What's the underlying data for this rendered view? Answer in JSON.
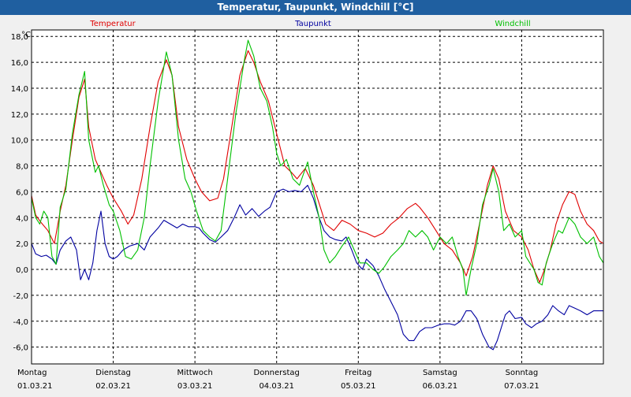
{
  "window": {
    "title": "Temperatur, Taupunkt, Windchill [°C]"
  },
  "chart_data": {
    "type": "line",
    "title": "Temperatur, Taupunkt, Windchill [°C]",
    "ylabel": "°C",
    "ylim": [
      -7.3,
      18.5
    ],
    "xlim": [
      0,
      7
    ],
    "grid": true,
    "y_ticks": [
      "18,0",
      "16,0",
      "14,0",
      "12,0",
      "10,0",
      "8,0",
      "6,0",
      "4,0",
      "2,0",
      "0,0",
      "-2,0",
      "-4,0",
      "-6,0"
    ],
    "y_tick_values": [
      18,
      16,
      14,
      12,
      10,
      8,
      6,
      4,
      2,
      0,
      -2,
      -4,
      -6
    ],
    "x_ticks": [
      {
        "day": "Montag",
        "date": "01.03.21"
      },
      {
        "day": "Dienstag",
        "date": "02.03.21"
      },
      {
        "day": "Mittwoch",
        "date": "03.03.21"
      },
      {
        "day": "Donnerstag",
        "date": "04.03.21"
      },
      {
        "day": "Freitag",
        "date": "05.03.21"
      },
      {
        "day": "Samstag",
        "date": "06.03.21"
      },
      {
        "day": "Sonntag",
        "date": "07.03.21"
      }
    ],
    "series": [
      {
        "name": "Temperatur",
        "color": "#e00000",
        "points": [
          [
            0,
            5.7
          ],
          [
            0.05,
            4.2
          ],
          [
            0.12,
            3.6
          ],
          [
            0.2,
            3
          ],
          [
            0.28,
            2
          ],
          [
            0.35,
            4.5
          ],
          [
            0.42,
            6.5
          ],
          [
            0.5,
            10
          ],
          [
            0.58,
            13.3
          ],
          [
            0.65,
            14.7
          ],
          [
            0.7,
            11
          ],
          [
            0.78,
            8.5
          ],
          [
            0.85,
            7.5
          ],
          [
            0.92,
            6.5
          ],
          [
            1,
            5.5
          ],
          [
            1.1,
            4.5
          ],
          [
            1.18,
            3.5
          ],
          [
            1.25,
            4.2
          ],
          [
            1.35,
            7
          ],
          [
            1.45,
            11
          ],
          [
            1.55,
            14.5
          ],
          [
            1.65,
            16.2
          ],
          [
            1.72,
            15
          ],
          [
            1.8,
            11
          ],
          [
            1.9,
            8.5
          ],
          [
            2,
            7
          ],
          [
            2.08,
            6
          ],
          [
            2.18,
            5.3
          ],
          [
            2.28,
            5.5
          ],
          [
            2.35,
            7
          ],
          [
            2.45,
            11
          ],
          [
            2.55,
            15
          ],
          [
            2.65,
            16.9
          ],
          [
            2.72,
            16
          ],
          [
            2.8,
            14.5
          ],
          [
            2.9,
            13
          ],
          [
            3,
            10.5
          ],
          [
            3.1,
            8
          ],
          [
            3.18,
            7.5
          ],
          [
            3.25,
            7
          ],
          [
            3.35,
            7.8
          ],
          [
            3.45,
            6.5
          ],
          [
            3.55,
            4.5
          ],
          [
            3.6,
            3.5
          ],
          [
            3.7,
            3
          ],
          [
            3.8,
            3.8
          ],
          [
            3.9,
            3.5
          ],
          [
            4,
            3
          ],
          [
            4.1,
            2.8
          ],
          [
            4.2,
            2.5
          ],
          [
            4.3,
            2.8
          ],
          [
            4.4,
            3.5
          ],
          [
            4.5,
            4
          ],
          [
            4.6,
            4.7
          ],
          [
            4.7,
            5.1
          ],
          [
            4.75,
            4.8
          ],
          [
            4.85,
            4
          ],
          [
            4.95,
            3
          ],
          [
            5.05,
            2
          ],
          [
            5.15,
            1.5
          ],
          [
            5.25,
            0.5
          ],
          [
            5.32,
            -0.5
          ],
          [
            5.4,
            1
          ],
          [
            5.5,
            4
          ],
          [
            5.58,
            6.5
          ],
          [
            5.65,
            8
          ],
          [
            5.72,
            7
          ],
          [
            5.8,
            4.5
          ],
          [
            5.9,
            3
          ],
          [
            6,
            2.5
          ],
          [
            6.08,
            1.5
          ],
          [
            6.15,
            0
          ],
          [
            6.22,
            -1
          ],
          [
            6.28,
            0
          ],
          [
            6.35,
            1.5
          ],
          [
            6.42,
            3.5
          ],
          [
            6.5,
            5
          ],
          [
            6.58,
            6
          ],
          [
            6.65,
            5.8
          ],
          [
            6.72,
            4.5
          ],
          [
            6.8,
            3.5
          ],
          [
            6.88,
            3
          ],
          [
            6.95,
            2.2
          ],
          [
            7,
            2
          ]
        ]
      },
      {
        "name": "Taupunkt",
        "color": "#0000a0",
        "points": [
          [
            0,
            2
          ],
          [
            0.05,
            1.2
          ],
          [
            0.12,
            1
          ],
          [
            0.18,
            1.1
          ],
          [
            0.25,
            0.8
          ],
          [
            0.3,
            0.4
          ],
          [
            0.35,
            1.5
          ],
          [
            0.42,
            2.2
          ],
          [
            0.48,
            2.5
          ],
          [
            0.55,
            1.5
          ],
          [
            0.6,
            -0.8
          ],
          [
            0.65,
            0
          ],
          [
            0.7,
            -0.8
          ],
          [
            0.75,
            0.5
          ],
          [
            0.8,
            3
          ],
          [
            0.85,
            4.5
          ],
          [
            0.9,
            2
          ],
          [
            0.95,
            1
          ],
          [
            1,
            0.8
          ],
          [
            1.05,
            1
          ],
          [
            1.12,
            1.5
          ],
          [
            1.2,
            1.8
          ],
          [
            1.3,
            2
          ],
          [
            1.38,
            1.5
          ],
          [
            1.45,
            2.5
          ],
          [
            1.55,
            3.2
          ],
          [
            1.62,
            3.8
          ],
          [
            1.7,
            3.5
          ],
          [
            1.78,
            3.2
          ],
          [
            1.85,
            3.5
          ],
          [
            1.92,
            3.3
          ],
          [
            2,
            3.3
          ],
          [
            2.05,
            3.2
          ],
          [
            2.1,
            2.8
          ],
          [
            2.18,
            2.3
          ],
          [
            2.25,
            2.1
          ],
          [
            2.32,
            2.5
          ],
          [
            2.4,
            3
          ],
          [
            2.48,
            4
          ],
          [
            2.55,
            5
          ],
          [
            2.62,
            4.2
          ],
          [
            2.7,
            4.7
          ],
          [
            2.78,
            4.1
          ],
          [
            2.85,
            4.5
          ],
          [
            2.92,
            4.8
          ],
          [
            3,
            6
          ],
          [
            3.08,
            6.2
          ],
          [
            3.15,
            6
          ],
          [
            3.22,
            6.1
          ],
          [
            3.3,
            6
          ],
          [
            3.38,
            6.5
          ],
          [
            3.45,
            5.5
          ],
          [
            3.52,
            4
          ],
          [
            3.58,
            3
          ],
          [
            3.65,
            2.5
          ],
          [
            3.72,
            2.3
          ],
          [
            3.8,
            2.2
          ],
          [
            3.85,
            2.5
          ],
          [
            3.92,
            1.5
          ],
          [
            3.98,
            0.5
          ],
          [
            4.05,
            0
          ],
          [
            4.1,
            0.8
          ],
          [
            4.18,
            0.3
          ],
          [
            4.25,
            -0.5
          ],
          [
            4.32,
            -1.5
          ],
          [
            4.4,
            -2.5
          ],
          [
            4.48,
            -3.5
          ],
          [
            4.55,
            -5
          ],
          [
            4.62,
            -5.5
          ],
          [
            4.68,
            -5.5
          ],
          [
            4.75,
            -4.8
          ],
          [
            4.82,
            -4.5
          ],
          [
            4.9,
            -4.5
          ],
          [
            4.98,
            -4.3
          ],
          [
            5.05,
            -4.2
          ],
          [
            5.12,
            -4.2
          ],
          [
            5.18,
            -4.3
          ],
          [
            5.25,
            -4
          ],
          [
            5.32,
            -3.2
          ],
          [
            5.38,
            -3.2
          ],
          [
            5.45,
            -3.8
          ],
          [
            5.52,
            -5
          ],
          [
            5.6,
            -6
          ],
          [
            5.65,
            -6.2
          ],
          [
            5.7,
            -5.5
          ],
          [
            5.75,
            -4.5
          ],
          [
            5.8,
            -3.5
          ],
          [
            5.85,
            -3.2
          ],
          [
            5.92,
            -3.8
          ],
          [
            6,
            -3.7
          ],
          [
            6.05,
            -4.2
          ],
          [
            6.12,
            -4.5
          ],
          [
            6.18,
            -4.2
          ],
          [
            6.25,
            -4
          ],
          [
            6.32,
            -3.5
          ],
          [
            6.38,
            -2.8
          ],
          [
            6.45,
            -3.2
          ],
          [
            6.52,
            -3.5
          ],
          [
            6.58,
            -2.8
          ],
          [
            6.65,
            -3
          ],
          [
            6.72,
            -3.2
          ],
          [
            6.8,
            -3.5
          ],
          [
            6.88,
            -3.2
          ],
          [
            6.95,
            -3.2
          ],
          [
            7,
            -3.2
          ]
        ]
      },
      {
        "name": "Windchill",
        "color": "#00c000",
        "points": [
          [
            0,
            5.5
          ],
          [
            0.05,
            4
          ],
          [
            0.1,
            3.5
          ],
          [
            0.15,
            4.5
          ],
          [
            0.2,
            4
          ],
          [
            0.25,
            1
          ],
          [
            0.3,
            0.4
          ],
          [
            0.35,
            4.8
          ],
          [
            0.42,
            6.2
          ],
          [
            0.5,
            10.5
          ],
          [
            0.58,
            13.5
          ],
          [
            0.65,
            15.3
          ],
          [
            0.7,
            10
          ],
          [
            0.78,
            7.5
          ],
          [
            0.82,
            8
          ],
          [
            0.88,
            6.5
          ],
          [
            0.95,
            5
          ],
          [
            1,
            4.5
          ],
          [
            1.08,
            3
          ],
          [
            1.15,
            1
          ],
          [
            1.22,
            0.8
          ],
          [
            1.3,
            1.5
          ],
          [
            1.38,
            4
          ],
          [
            1.45,
            8
          ],
          [
            1.55,
            13
          ],
          [
            1.65,
            16.8
          ],
          [
            1.72,
            15
          ],
          [
            1.8,
            10
          ],
          [
            1.88,
            7
          ],
          [
            1.95,
            6
          ],
          [
            2.02,
            4.5
          ],
          [
            2.1,
            3
          ],
          [
            2.18,
            2.5
          ],
          [
            2.25,
            2.2
          ],
          [
            2.32,
            3
          ],
          [
            2.4,
            7
          ],
          [
            2.5,
            12
          ],
          [
            2.6,
            16
          ],
          [
            2.65,
            17.7
          ],
          [
            2.72,
            16.5
          ],
          [
            2.8,
            14
          ],
          [
            2.88,
            13
          ],
          [
            2.95,
            11
          ],
          [
            3,
            9
          ],
          [
            3.05,
            8
          ],
          [
            3.12,
            8.5
          ],
          [
            3.2,
            7
          ],
          [
            3.28,
            6.5
          ],
          [
            3.38,
            8.3
          ],
          [
            3.45,
            6
          ],
          [
            3.52,
            4
          ],
          [
            3.58,
            1.5
          ],
          [
            3.65,
            0.5
          ],
          [
            3.72,
            1
          ],
          [
            3.8,
            1.8
          ],
          [
            3.88,
            2.5
          ],
          [
            3.95,
            1.5
          ],
          [
            4.02,
            0.5
          ],
          [
            4.1,
            0.5
          ],
          [
            4.18,
            0
          ],
          [
            4.25,
            -0.3
          ],
          [
            4.32,
            0.2
          ],
          [
            4.4,
            1
          ],
          [
            4.48,
            1.5
          ],
          [
            4.55,
            2
          ],
          [
            4.62,
            3
          ],
          [
            4.7,
            2.5
          ],
          [
            4.78,
            3
          ],
          [
            4.85,
            2.5
          ],
          [
            4.92,
            1.5
          ],
          [
            5,
            2.5
          ],
          [
            5.08,
            2
          ],
          [
            5.15,
            2.5
          ],
          [
            5.22,
            1
          ],
          [
            5.28,
            0
          ],
          [
            5.32,
            -2
          ],
          [
            5.38,
            0
          ],
          [
            5.45,
            2
          ],
          [
            5.52,
            5
          ],
          [
            5.6,
            6.5
          ],
          [
            5.65,
            7.8
          ],
          [
            5.72,
            6
          ],
          [
            5.78,
            3
          ],
          [
            5.85,
            3.5
          ],
          [
            5.92,
            2.5
          ],
          [
            6,
            3
          ],
          [
            6.05,
            1
          ],
          [
            6.1,
            0.5
          ],
          [
            6.15,
            0
          ],
          [
            6.2,
            -1
          ],
          [
            6.25,
            -1.2
          ],
          [
            6.3,
            0.5
          ],
          [
            6.38,
            2
          ],
          [
            6.45,
            3
          ],
          [
            6.5,
            2.8
          ],
          [
            6.58,
            4
          ],
          [
            6.65,
            3.5
          ],
          [
            6.72,
            2.5
          ],
          [
            6.8,
            2
          ],
          [
            6.88,
            2.5
          ],
          [
            6.95,
            1
          ],
          [
            7,
            0.5
          ]
        ]
      }
    ]
  }
}
